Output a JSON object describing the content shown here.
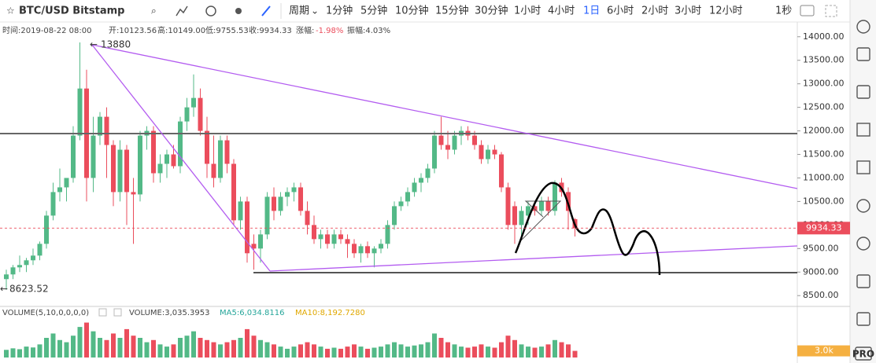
{
  "toolbar": {
    "symbol": "BTC/USD Bitstamp",
    "period_menu": "周期",
    "intervals": [
      "1分钟",
      "5分钟",
      "10分钟",
      "15分钟",
      "30分钟",
      "1小时",
      "4小时",
      "1日",
      "6小时",
      "2小时",
      "3小时",
      "12小时"
    ],
    "active_interval": 7,
    "seconds": "1秒"
  },
  "info": {
    "time": "时间:2019-08-22 08:00",
    "open": "开:10123.56",
    "high": "高:10149.00",
    "low": "低:9755.53",
    "close": "收:9934.33",
    "change_label": "涨幅:",
    "change": "-1.98%",
    "amplitude": "振幅:4.03%"
  },
  "chart": {
    "type": "candlestick",
    "up_color": "#53b987",
    "down_color": "#eb4d5c",
    "ylim": [
      8270,
      14280
    ],
    "yticks": [
      {
        "value": 8500,
        "label": "8500.00"
      },
      {
        "value": 9000,
        "label": "9000.00"
      },
      {
        "value": 9500,
        "label": "9500.00"
      },
      {
        "value": 10000,
        "label": "10000.00"
      },
      {
        "value": 10500,
        "label": "10500.00"
      },
      {
        "value": 11000,
        "label": "11000.00"
      },
      {
        "value": 11500,
        "label": "11500.00"
      },
      {
        "value": 12000,
        "label": "12000.00"
      },
      {
        "value": 12500,
        "label": "12500.00"
      },
      {
        "value": 13000,
        "label": "13000.00"
      },
      {
        "value": 13500,
        "label": "13500.00"
      },
      {
        "value": 14000,
        "label": "14000.00"
      }
    ],
    "last_price": 9934.33,
    "last_price_label": "9934.33",
    "max_label": "13880",
    "min_label": "8623.52",
    "candles": [
      [
        8850,
        9050,
        8623.52,
        8950
      ],
      [
        8950,
        9150,
        8850,
        9100
      ],
      [
        9100,
        9350,
        9000,
        9150
      ],
      [
        9150,
        9300,
        9000,
        9250
      ],
      [
        9250,
        9500,
        9150,
        9350
      ],
      [
        9350,
        9650,
        9250,
        9600
      ],
      [
        9600,
        10300,
        9500,
        10200
      ],
      [
        10200,
        10900,
        10100,
        10700
      ],
      [
        10700,
        11200,
        10500,
        10800
      ],
      [
        10800,
        11000,
        10500,
        11000
      ],
      [
        11000,
        12100,
        10900,
        11900
      ],
      [
        11900,
        13880,
        11800,
        12900
      ],
      [
        12900,
        13300,
        10500,
        11000
      ],
      [
        11000,
        12300,
        10700,
        11900
      ],
      [
        11900,
        12400,
        11700,
        12300
      ],
      [
        12300,
        12500,
        11000,
        11700
      ],
      [
        11700,
        11800,
        10400,
        10700
      ],
      [
        10700,
        11800,
        10500,
        11600
      ],
      [
        11600,
        11700,
        10000,
        10700
      ],
      [
        10700,
        11000,
        9600,
        10650
      ],
      [
        10650,
        12000,
        10500,
        11900
      ],
      [
        11900,
        12100,
        11600,
        12000
      ],
      [
        12000,
        12100,
        10900,
        11100
      ],
      [
        11100,
        11500,
        10900,
        11300
      ],
      [
        11300,
        11600,
        11000,
        11500
      ],
      [
        11500,
        11700,
        11200,
        11250
      ],
      [
        11250,
        12300,
        11100,
        12200
      ],
      [
        12200,
        12700,
        12000,
        12500
      ],
      [
        12500,
        13200,
        12300,
        12700
      ],
      [
        12700,
        12900,
        11900,
        12000
      ],
      [
        12000,
        12300,
        11000,
        11300
      ],
      [
        11300,
        11900,
        10800,
        11000
      ],
      [
        11000,
        11900,
        10900,
        11800
      ],
      [
        11800,
        11900,
        11100,
        11300
      ],
      [
        11300,
        11400,
        10000,
        10100
      ],
      [
        10100,
        10600,
        9900,
        10500
      ],
      [
        10500,
        10600,
        9200,
        9400
      ],
      [
        9600,
        9800,
        9050,
        9500
      ],
      [
        9500,
        9900,
        9200,
        9800
      ],
      [
        9800,
        10700,
        9700,
        10600
      ],
      [
        10600,
        10800,
        10100,
        10300
      ],
      [
        10300,
        10700,
        10200,
        10600
      ],
      [
        10600,
        10800,
        10400,
        10700
      ],
      [
        10700,
        10900,
        10500,
        10800
      ],
      [
        10800,
        10900,
        10200,
        10300
      ],
      [
        10300,
        10500,
        9800,
        10000
      ],
      [
        10000,
        10200,
        9600,
        9700
      ],
      [
        9700,
        9900,
        9500,
        9800
      ],
      [
        9800,
        9900,
        9500,
        9600
      ],
      [
        9600,
        9900,
        9500,
        9800
      ],
      [
        9800,
        9900,
        9600,
        9700
      ],
      [
        9700,
        9800,
        9300,
        9600
      ],
      [
        9600,
        9700,
        9300,
        9400
      ],
      [
        9400,
        9600,
        9200,
        9550
      ],
      [
        9550,
        9650,
        9300,
        9400
      ],
      [
        9400,
        9550,
        9100,
        9500
      ],
      [
        9500,
        9700,
        9400,
        9600
      ],
      [
        9600,
        10100,
        9500,
        10000
      ],
      [
        10000,
        10500,
        9900,
        10400
      ],
      [
        10400,
        10600,
        10300,
        10500
      ],
      [
        10500,
        10800,
        10400,
        10700
      ],
      [
        10700,
        11000,
        10600,
        10900
      ],
      [
        10900,
        11100,
        10700,
        11000
      ],
      [
        11000,
        11300,
        10900,
        11200
      ],
      [
        11200,
        12000,
        11100,
        11900
      ],
      [
        11900,
        12300,
        11600,
        11700
      ],
      [
        11700,
        12000,
        11400,
        11600
      ],
      [
        11600,
        12000,
        11500,
        11900
      ],
      [
        11900,
        12100,
        11700,
        12000
      ],
      [
        12000,
        12100,
        11800,
        11900
      ],
      [
        11900,
        12000,
        11600,
        11700
      ],
      [
        11700,
        11800,
        11300,
        11400
      ],
      [
        11400,
        11700,
        11300,
        11600
      ],
      [
        11600,
        11700,
        11400,
        11500
      ],
      [
        11500,
        11550,
        10700,
        10800
      ],
      [
        10800,
        10900,
        9900,
        10000
      ],
      [
        10400,
        10500,
        9600,
        10000
      ],
      [
        10000,
        10400,
        9700,
        10300
      ],
      [
        10200,
        10500,
        10000,
        10400
      ],
      [
        10400,
        10500,
        10200,
        10300
      ],
      [
        10300,
        10600,
        10200,
        10500
      ],
      [
        10500,
        10600,
        10200,
        10300
      ],
      [
        10300,
        10950,
        10200,
        10900
      ],
      [
        10900,
        11000,
        10600,
        10700
      ],
      [
        10700,
        10800,
        9900,
        10300
      ],
      [
        10123.56,
        10149,
        9755.53,
        9934.33
      ]
    ]
  },
  "volume": {
    "legend": "VOLUME(5,10,0,0,0,0)",
    "current": "VOLUME:3,035.3953",
    "ma5": "MA5:6,034.8116",
    "ma10": "MA10:8,192.7280",
    "current_label": "3.0k",
    "ylim": [
      0,
      18000
    ],
    "values": [
      3500,
      4200,
      3800,
      5000,
      4600,
      6000,
      9000,
      11000,
      8000,
      7000,
      10000,
      14000,
      16000,
      12000,
      9000,
      8000,
      11000,
      9000,
      13000,
      10000,
      9000,
      7000,
      8000,
      6000,
      5000,
      6000,
      9000,
      10000,
      12000,
      9000,
      8000,
      7000,
      6000,
      7000,
      8000,
      9000,
      13000,
      10000,
      8000,
      7000,
      6000,
      5000,
      4000,
      5000,
      6000,
      7000,
      6000,
      5000,
      4000,
      4500,
      4000,
      5000,
      6000,
      5000,
      4000,
      4500,
      5000,
      6000,
      7000,
      6000,
      5000,
      5500,
      6000,
      7000,
      11000,
      9000,
      7000,
      6000,
      5000,
      4500,
      5000,
      6000,
      5000,
      4500,
      7000,
      10000,
      8000,
      6000,
      5000,
      4500,
      5000,
      6000,
      8000,
      7000,
      6000,
      3035.3953
    ]
  },
  "sidebar": {
    "pro": "PRO"
  }
}
